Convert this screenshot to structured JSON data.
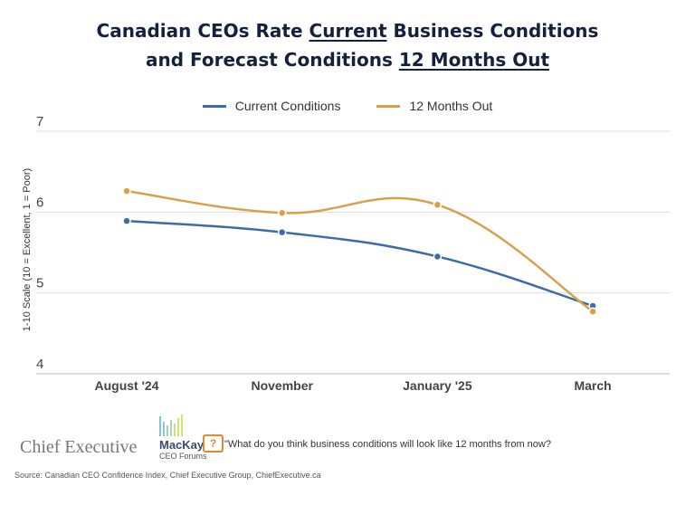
{
  "title": {
    "line1_pre": "Canadian CEOs Rate ",
    "line1_u": "Current",
    "line1_post": " Business Conditions",
    "line2_pre": "and Forecast Conditions ",
    "line2_u": "12 Months Out"
  },
  "chart_data": {
    "type": "line",
    "categories": [
      "August '24",
      "November",
      "January '25",
      "March"
    ],
    "series": [
      {
        "name": "Current Conditions",
        "color": "#3d6aa8",
        "values": [
          5.89,
          5.75,
          5.45,
          4.84
        ]
      },
      {
        "name": "12 Months Out",
        "color": "#d9a04a",
        "values": [
          6.26,
          5.99,
          6.09,
          4.77
        ]
      }
    ],
    "ylabel": "1-10 Scale (10 = Excellent, 1 = Poor)",
    "ylim": [
      4,
      7
    ],
    "yticks": [
      "4",
      "5",
      "6",
      "7"
    ],
    "grid": true,
    "smooth": true,
    "legend": "top"
  },
  "footer": {
    "logo1": "Chief Executive",
    "logo2_name": "MacKay",
    "logo2_sub": "CEO Forums",
    "quote_icon": "question-bubble-icon",
    "quote": "\"What do you think business conditions will look like 12 months from now?",
    "source": "Source: Canadian CEO Confidence Index, Chief Executive Group, ChiefExecutive.ca"
  }
}
